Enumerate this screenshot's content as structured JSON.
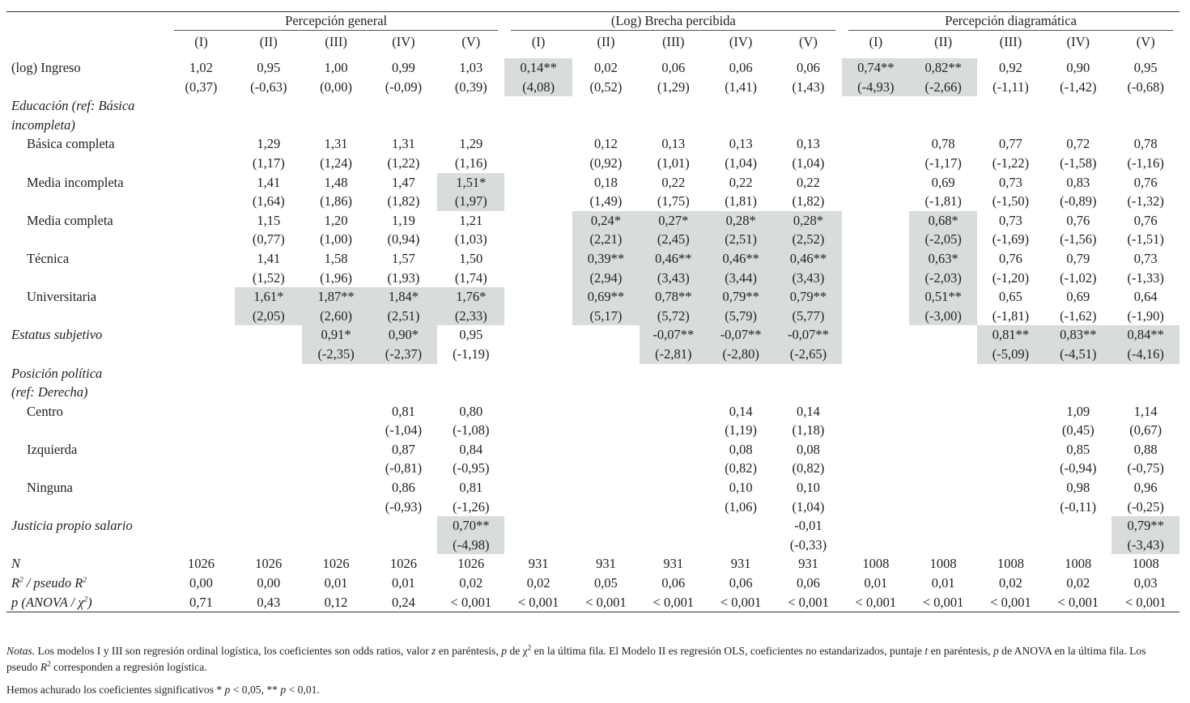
{
  "headers": {
    "groups": [
      "Percepción general",
      "(Log) Brecha percibida",
      "Percepción diagramática"
    ],
    "models": [
      "(I)",
      "(II)",
      "(III)",
      "(IV)",
      "(V)",
      "(I)",
      "(II)",
      "(III)",
      "(IV)",
      "(V)",
      "(I)",
      "(II)",
      "(III)",
      "(IV)",
      "(V)"
    ]
  },
  "rows": [
    {
      "label": "(log) Ingreso",
      "style": "plain",
      "coef": [
        "1,02",
        "0,95",
        "1,00",
        "0,99",
        "1,03",
        "0,14**",
        "0,02",
        "0,06",
        "0,06",
        "0,06",
        "0,74**",
        "0,82**",
        "0,92",
        "0,90",
        "0,95"
      ],
      "se": [
        "(0,37)",
        "(-0,63)",
        "(0,00)",
        "(-0,09)",
        "(0,39)",
        "(4,08)",
        "(0,52)",
        "(1,29)",
        "(1,41)",
        "(1,43)",
        "(-4,93)",
        "(-2,66)",
        "(-1,11)",
        "(-1,42)",
        "(-0,68)"
      ],
      "hl": [
        5,
        10,
        11
      ]
    },
    {
      "label": "Educación (ref: Básica",
      "style": "italic-head"
    },
    {
      "label": "incompleta)",
      "style": "italic-head"
    },
    {
      "label": "Básica completa",
      "style": "sub",
      "coef": [
        "",
        "1,29",
        "1,31",
        "1,31",
        "1,29",
        "",
        "0,12",
        "0,13",
        "0,13",
        "0,13",
        "",
        "0,78",
        "0,77",
        "0,72",
        "0,78"
      ],
      "se": [
        "",
        "(1,17)",
        "(1,24)",
        "(1,22)",
        "(1,16)",
        "",
        "(0,92)",
        "(1,01)",
        "(1,04)",
        "(1,04)",
        "",
        "(-1,17)",
        "(-1,22)",
        "(-1,58)",
        "(-1,16)"
      ],
      "hl": []
    },
    {
      "label": "Media incompleta",
      "style": "sub",
      "coef": [
        "",
        "1,41",
        "1,48",
        "1,47",
        "1,51*",
        "",
        "0,18",
        "0,22",
        "0,22",
        "0,22",
        "",
        "0,69",
        "0,73",
        "0,83",
        "0,76"
      ],
      "se": [
        "",
        "(1,64)",
        "(1,86)",
        "(1,82)",
        "(1,97)",
        "",
        "(1,49)",
        "(1,75)",
        "(1,81)",
        "(1,82)",
        "",
        "(-1,81)",
        "(-1,50)",
        "(-0,89)",
        "(-1,32)"
      ],
      "hl": [
        4
      ]
    },
    {
      "label": "Media completa",
      "style": "sub",
      "coef": [
        "",
        "1,15",
        "1,20",
        "1,19",
        "1,21",
        "",
        "0,24*",
        "0,27*",
        "0,28*",
        "0,28*",
        "",
        "0,68*",
        "0,73",
        "0,76",
        "0,76"
      ],
      "se": [
        "",
        "(0,77)",
        "(1,00)",
        "(0,94)",
        "(1,03)",
        "",
        "(2,21)",
        "(2,45)",
        "(2,51)",
        "(2,52)",
        "",
        "(-2,05)",
        "(-1,69)",
        "(-1,56)",
        "(-1,51)"
      ],
      "hl": [
        6,
        7,
        8,
        9,
        11
      ]
    },
    {
      "label": "Técnica",
      "style": "sub",
      "coef": [
        "",
        "1,41",
        "1,58",
        "1,57",
        "1,50",
        "",
        "0,39**",
        "0,46**",
        "0,46**",
        "0,46**",
        "",
        "0,63*",
        "0,76",
        "0,79",
        "0,73"
      ],
      "se": [
        "",
        "(1,52)",
        "(1,96)",
        "(1,93)",
        "(1,74)",
        "",
        "(2,94)",
        "(3,43)",
        "(3,44)",
        "(3,43)",
        "",
        "(-2,03)",
        "(-1,20)",
        "(-1,02)",
        "(-1,33)"
      ],
      "hl": [
        6,
        7,
        8,
        9,
        11
      ]
    },
    {
      "label": "Universitaria",
      "style": "sub",
      "coef": [
        "",
        "1,61*",
        "1,87**",
        "1,84*",
        "1,76*",
        "",
        "0,69**",
        "0,78**",
        "0,79**",
        "0,79**",
        "",
        "0,51**",
        "0,65",
        "0,69",
        "0,64"
      ],
      "se": [
        "",
        "(2,05)",
        "(2,60)",
        "(2,51)",
        "(2,33)",
        "",
        "(5,17)",
        "(5,72)",
        "(5,79)",
        "(5,77)",
        "",
        "(-3,00)",
        "(-1,81)",
        "(-1,62)",
        "(-1,90)"
      ],
      "hl": [
        1,
        2,
        3,
        4,
        6,
        7,
        8,
        9,
        11
      ]
    },
    {
      "label": "Estatus subjetivo",
      "style": "italic",
      "coef": [
        "",
        "",
        "0,91*",
        "0,90*",
        "0,95",
        "",
        "",
        "-0,07**",
        "-0,07**",
        "-0,07**",
        "",
        "",
        "0,81**",
        "0,83**",
        "0,84**"
      ],
      "se": [
        "",
        "",
        "(-2,35)",
        "(-2,37)",
        "(-1,19)",
        "",
        "",
        "(-2,81)",
        "(-2,80)",
        "(-2,65)",
        "",
        "",
        "(-5,09)",
        "(-4,51)",
        "(-4,16)"
      ],
      "hl": [
        2,
        3,
        7,
        8,
        9,
        12,
        13,
        14
      ]
    },
    {
      "label": "Posición política",
      "style": "italic-head"
    },
    {
      "label": "(ref: Derecha)",
      "style": "italic-head"
    },
    {
      "label": "Centro",
      "style": "sub",
      "coef": [
        "",
        "",
        "",
        "0,81",
        "0,80",
        "",
        "",
        "",
        "0,14",
        "0,14",
        "",
        "",
        "",
        "1,09",
        "1,14"
      ],
      "se": [
        "",
        "",
        "",
        "(-1,04)",
        "(-1,08)",
        "",
        "",
        "",
        "(1,19)",
        "(1,18)",
        "",
        "",
        "",
        "(0,45)",
        "(0,67)"
      ],
      "hl": []
    },
    {
      "label": "Izquierda",
      "style": "sub",
      "coef": [
        "",
        "",
        "",
        "0,87",
        "0,84",
        "",
        "",
        "",
        "0,08",
        "0,08",
        "",
        "",
        "",
        "0,85",
        "0,88"
      ],
      "se": [
        "",
        "",
        "",
        "(-0,81)",
        "(-0,95)",
        "",
        "",
        "",
        "(0,82)",
        "(0,82)",
        "",
        "",
        "",
        "(-0,94)",
        "(-0,75)"
      ],
      "hl": []
    },
    {
      "label": "Ninguna",
      "style": "sub",
      "coef": [
        "",
        "",
        "",
        "0,86",
        "0,81",
        "",
        "",
        "",
        "0,10",
        "0,10",
        "",
        "",
        "",
        "0,98",
        "0,96"
      ],
      "se": [
        "",
        "",
        "",
        "(-0,93)",
        "(-1,26)",
        "",
        "",
        "",
        "(1,06)",
        "(1,04)",
        "",
        "",
        "",
        "(-0,11)",
        "(-0,25)"
      ],
      "hl": []
    },
    {
      "label": "Justicia propio salario",
      "style": "italic",
      "coef": [
        "",
        "",
        "",
        "",
        "0,70**",
        "",
        "",
        "",
        "",
        "-0,01",
        "",
        "",
        "",
        "",
        "0,79**"
      ],
      "se": [
        "",
        "",
        "",
        "",
        "(-4,98)",
        "",
        "",
        "",
        "",
        "(-0,33)",
        "",
        "",
        "",
        "",
        "(-3,43)"
      ],
      "hl": [
        4,
        14
      ]
    }
  ],
  "stats": [
    {
      "label": "N",
      "values": [
        "1026",
        "1026",
        "1026",
        "1026",
        "1026",
        "931",
        "931",
        "931",
        "931",
        "931",
        "1008",
        "1008",
        "1008",
        "1008",
        "1008"
      ]
    },
    {
      "label": "R² / pseudo R²",
      "values": [
        "0,00",
        "0,00",
        "0,01",
        "0,01",
        "0,02",
        "0,02",
        "0,05",
        "0,06",
        "0,06",
        "0,06",
        "0,01",
        "0,01",
        "0,02",
        "0,02",
        "0,03"
      ]
    },
    {
      "label": "p (ANOVA / χ²)",
      "values": [
        "0,71",
        "0,43",
        "0,12",
        "0,24",
        "< 0,001",
        "< 0,001",
        "< 0,001",
        "< 0,001",
        "< 0,001",
        "< 0,001",
        "< 0,001",
        "< 0,001",
        "< 0,001",
        "< 0,001",
        "< 0,001"
      ]
    }
  ],
  "notes": {
    "lead": "Notas.",
    "text": " Los modelos I y III son regresión ordinal logística, los coeficientes son odds ratios, valor z en paréntesis, p de χ² en la última fila. El Modelo II es regresión OLS, coeficientes no estandarizados, puntaje t en paréntesis, p de ANOVA en la última fila. Los pseudo R² corresponden a regresión logística.",
    "significance": "Hemos achurado los coeficientes significativos * p < 0,05, ** p < 0,01."
  },
  "colors": {
    "highlight": "#d9dcdc",
    "rule": "#333333"
  }
}
